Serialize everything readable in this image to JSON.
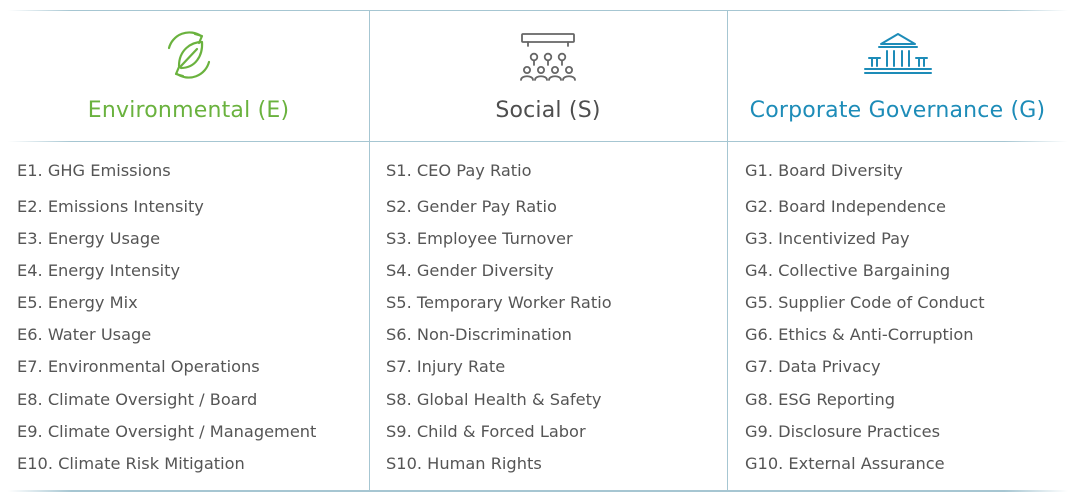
{
  "columns": [
    {
      "key": "environmental",
      "icon": "recycle-leaf-icon",
      "title": "Environmental (E)",
      "color": "#6ab23e",
      "items": [
        "E1. GHG Emissions",
        "E2. Emissions Intensity",
        "E3. Energy Usage",
        "E4. Energy Intensity",
        "E5. Energy Mix",
        "E6. Water Usage",
        "E7. Environmental Operations",
        "E8. Climate Oversight / Board",
        "E9. Climate Oversight / Management",
        "E10. Climate Risk Mitigation"
      ]
    },
    {
      "key": "social",
      "icon": "audience-presentation-icon",
      "title": "Social (S)",
      "color": "#4e4e4e",
      "items": [
        "S1. CEO Pay Ratio",
        "S2. Gender Pay Ratio",
        "S3. Employee Turnover",
        "S4. Gender Diversity",
        "S5. Temporary Worker Ratio",
        "S6. Non-Discrimination",
        "S7. Injury Rate",
        "S8. Global Health & Safety",
        "S9. Child & Forced Labor",
        "S10. Human Rights"
      ]
    },
    {
      "key": "governance",
      "icon": "government-building-icon",
      "title": "Corporate Governance (G)",
      "color": "#1d8cb8",
      "items": [
        "G1. Board Diversity",
        "G2. Board Independence",
        "G3. Incentivized Pay",
        "G4. Collective Bargaining",
        "G5. Supplier Code of Conduct",
        "G6. Ethics & Anti-Corruption",
        "G7. Data Privacy",
        "G8. ESG Reporting",
        "G9. Disclosure Practices",
        "G10. External Assurance"
      ]
    }
  ]
}
